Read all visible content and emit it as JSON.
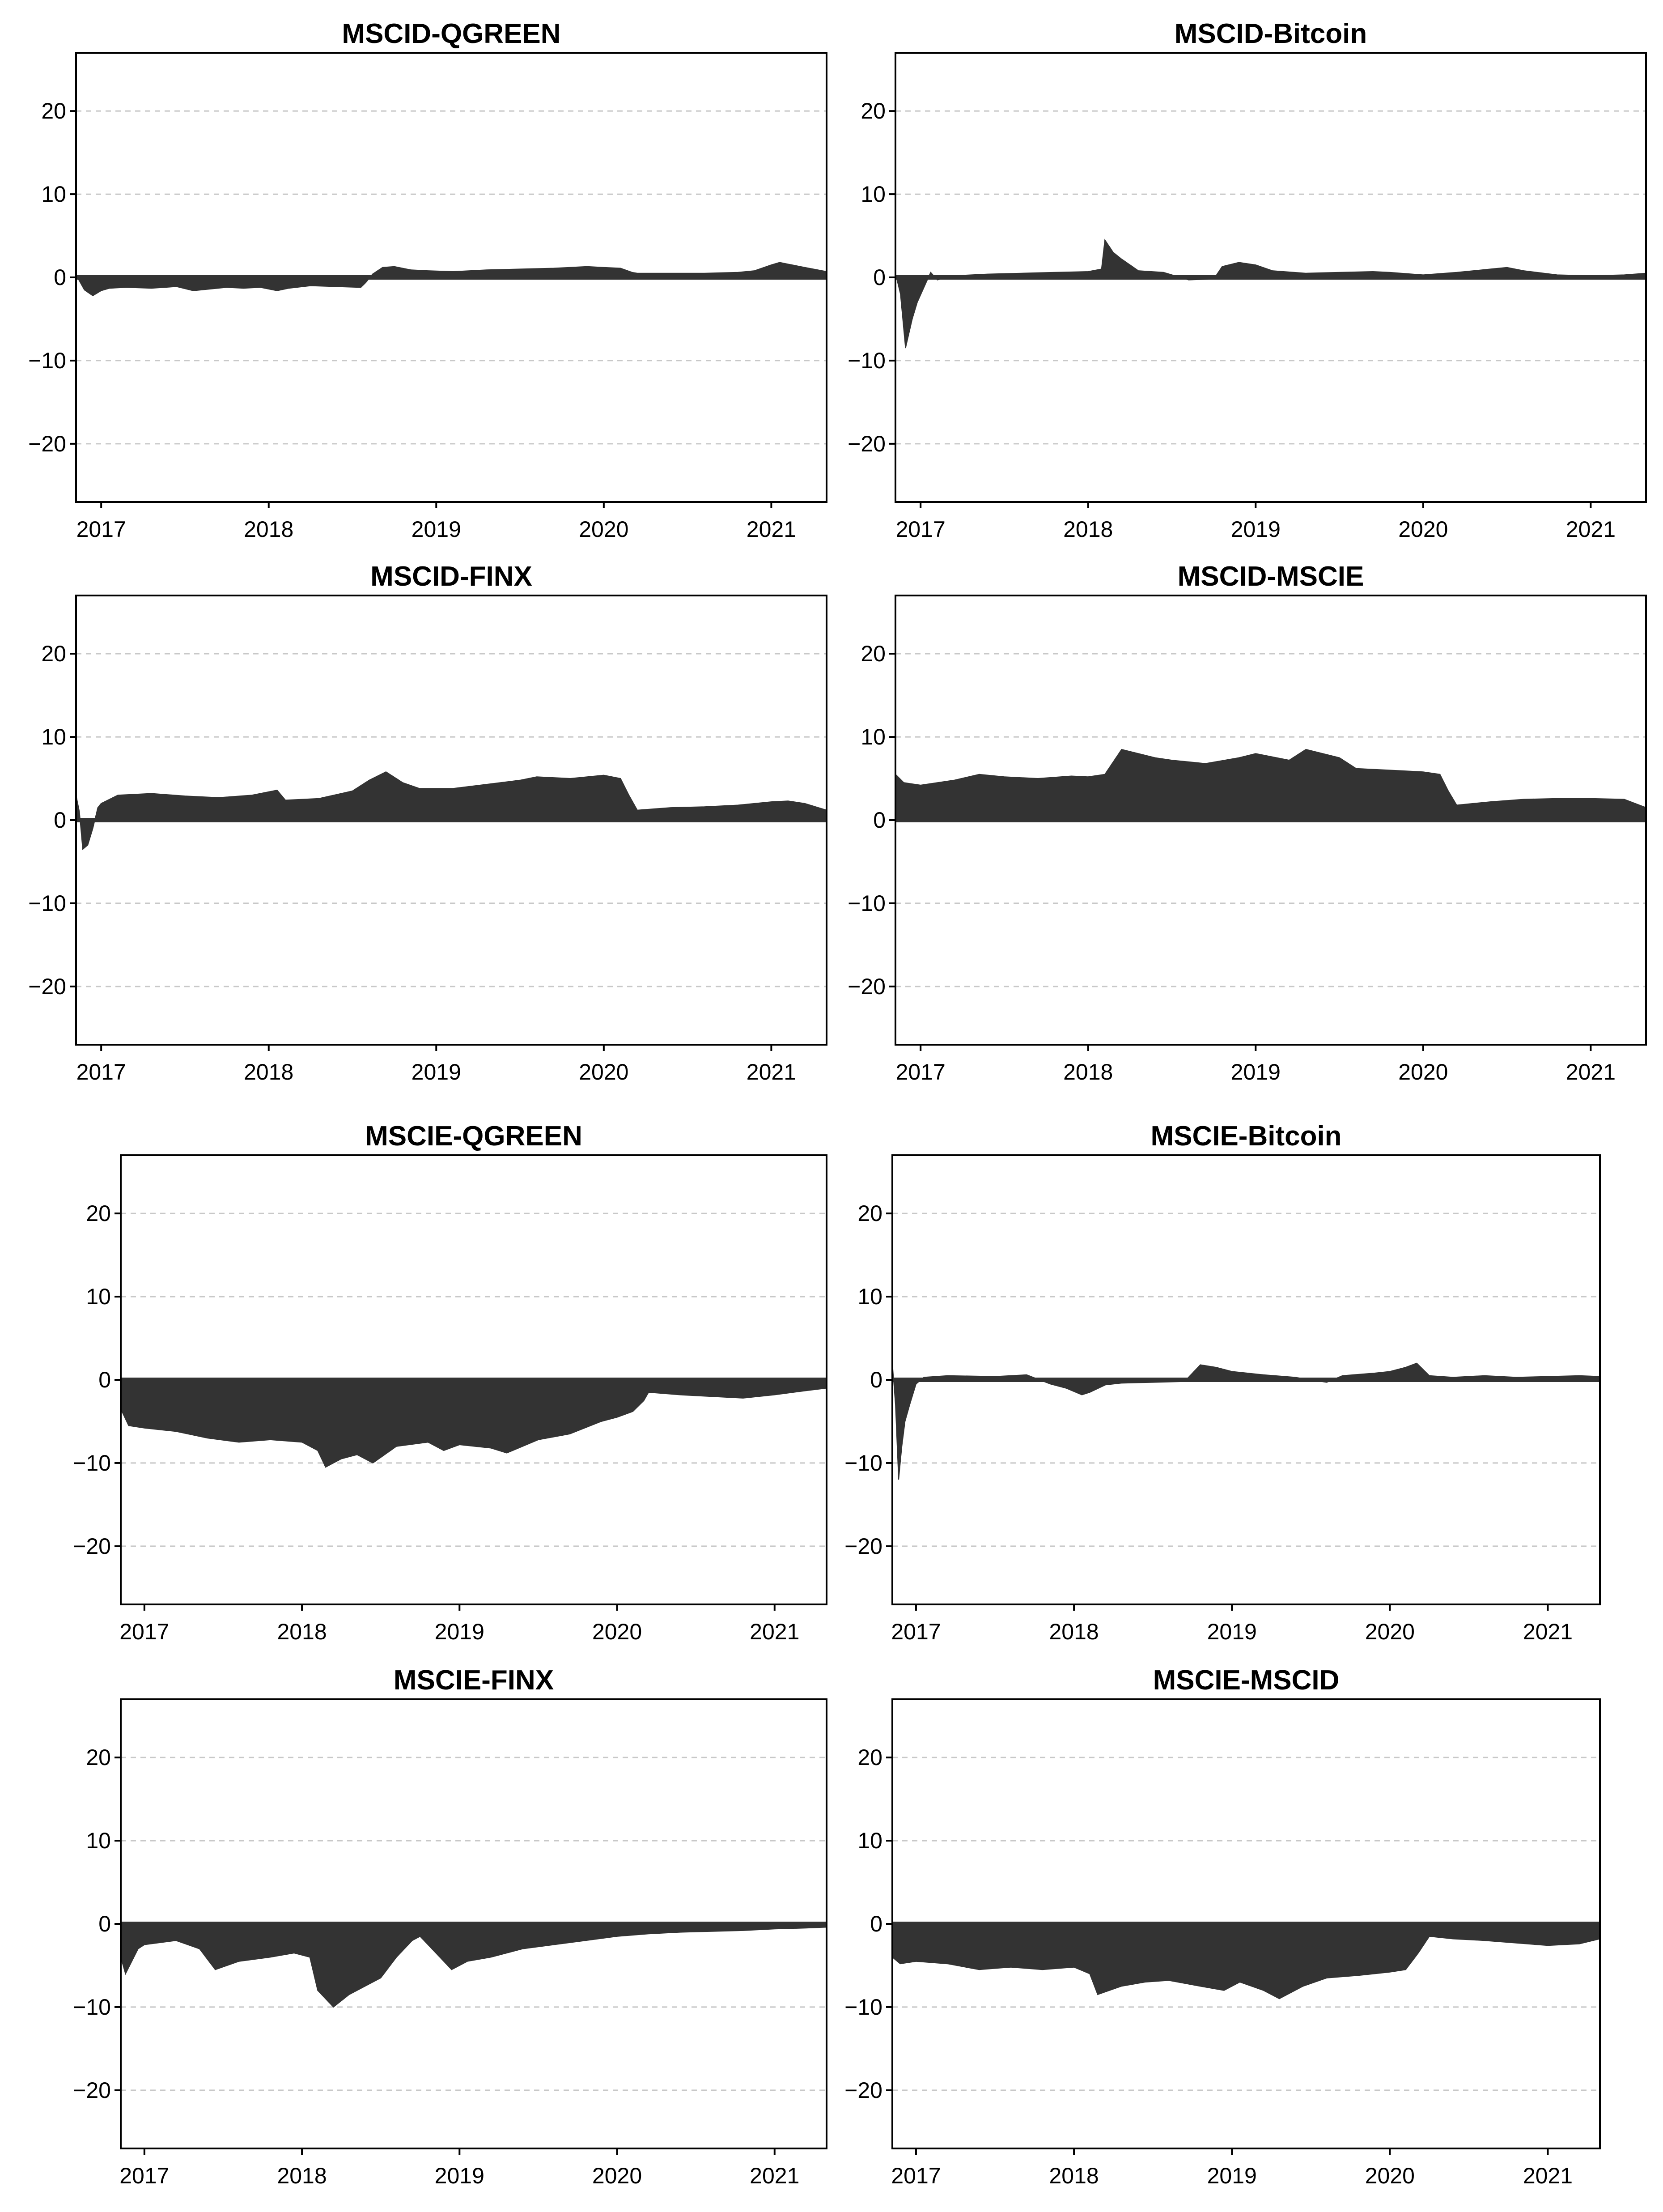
{
  "chart_data": [
    {
      "type": "area",
      "title": "MSCID-QGREEN",
      "xlabel": "",
      "ylabel": "",
      "x_ticks": [
        "2017",
        "2018",
        "2019",
        "2020",
        "2021"
      ],
      "y_ticks": [
        20,
        10,
        0,
        -10,
        -20
      ],
      "xlim": [
        2016.85,
        2021.33
      ],
      "ylim": [
        -27,
        27
      ],
      "grid": true,
      "color": "#333333",
      "series": [
        {
          "x": [
            2016.85,
            2016.9,
            2016.95,
            2017.0,
            2017.05,
            2017.15,
            2017.3,
            2017.45,
            2017.55,
            2017.65,
            2017.75,
            2017.85,
            2017.95,
            2018.05,
            2018.12,
            2018.25,
            2018.4,
            2018.55,
            2018.58,
            2018.62,
            2018.68,
            2018.75,
            2018.85,
            2018.95,
            2019.1,
            2019.3,
            2019.5,
            2019.7,
            2019.9,
            2020.0,
            2020.1,
            2020.17,
            2020.2,
            2020.4,
            2020.6,
            2020.8,
            2020.9,
            2021.0,
            2021.05,
            2021.1,
            2021.2,
            2021.33
          ],
          "values": [
            0.3,
            -1.5,
            -2.2,
            -1.6,
            -1.3,
            -1.2,
            -1.3,
            -1.1,
            -1.6,
            -1.4,
            -1.2,
            -1.3,
            -1.2,
            -1.6,
            -1.3,
            -1.0,
            -1.1,
            -1.2,
            -0.6,
            0.4,
            1.2,
            1.3,
            0.9,
            0.8,
            0.7,
            0.9,
            1.0,
            1.1,
            1.3,
            1.2,
            1.1,
            0.6,
            0.5,
            0.5,
            0.5,
            0.6,
            0.8,
            1.5,
            1.8,
            1.6,
            1.2,
            0.7
          ]
        }
      ]
    },
    {
      "type": "area",
      "title": "MSCID-Bitcoin",
      "xlabel": "",
      "ylabel": "",
      "x_ticks": [
        "2017",
        "2018",
        "2019",
        "2020",
        "2021"
      ],
      "y_ticks": [
        20,
        10,
        0,
        -10,
        -20
      ],
      "xlim": [
        2016.85,
        2021.33
      ],
      "ylim": [
        -27,
        27
      ],
      "grid": true,
      "color": "#333333",
      "series": [
        {
          "x": [
            2016.85,
            2016.88,
            2016.91,
            2016.95,
            2016.98,
            2017.02,
            2017.06,
            2017.1,
            2017.2,
            2017.4,
            2017.6,
            2017.8,
            2018.0,
            2018.08,
            2018.1,
            2018.15,
            2018.2,
            2018.3,
            2018.45,
            2018.6,
            2018.75,
            2018.8,
            2018.9,
            2019.0,
            2019.1,
            2019.3,
            2019.5,
            2019.7,
            2019.8,
            2020.0,
            2020.2,
            2020.4,
            2020.5,
            2020.6,
            2020.8,
            2021.0,
            2021.2,
            2021.33
          ],
          "values": [
            0.5,
            -2.0,
            -8.5,
            -5.0,
            -3.0,
            -1.2,
            0.6,
            -0.3,
            0.2,
            0.4,
            0.5,
            0.6,
            0.7,
            1.0,
            4.5,
            3.0,
            2.2,
            0.8,
            0.6,
            -0.3,
            -0.2,
            1.3,
            1.8,
            1.5,
            0.8,
            0.5,
            0.6,
            0.7,
            0.6,
            0.3,
            0.6,
            1.0,
            1.2,
            0.8,
            0.3,
            0.2,
            0.3,
            0.5
          ]
        }
      ]
    },
    {
      "type": "area",
      "title": "MSCID-FINX",
      "xlabel": "",
      "ylabel": "",
      "x_ticks": [
        "2017",
        "2018",
        "2019",
        "2020",
        "2021"
      ],
      "y_ticks": [
        20,
        10,
        0,
        -10,
        -20
      ],
      "xlim": [
        2016.85,
        2021.33
      ],
      "ylim": [
        -27,
        27
      ],
      "grid": true,
      "color": "#333333",
      "series": [
        {
          "x": [
            2016.85,
            2016.87,
            2016.89,
            2016.92,
            2016.95,
            2016.98,
            2017.0,
            2017.1,
            2017.3,
            2017.5,
            2017.7,
            2017.9,
            2018.05,
            2018.1,
            2018.3,
            2018.5,
            2018.6,
            2018.7,
            2018.8,
            2018.9,
            2019.1,
            2019.3,
            2019.5,
            2019.6,
            2019.8,
            2020.0,
            2020.1,
            2020.15,
            2020.2,
            2020.4,
            2020.6,
            2020.8,
            2021.0,
            2021.1,
            2021.2,
            2021.33
          ],
          "values": [
            3.0,
            1.0,
            -3.5,
            -3.0,
            -1.0,
            1.5,
            2.0,
            3.0,
            3.2,
            2.9,
            2.7,
            3.0,
            3.6,
            2.4,
            2.6,
            3.5,
            4.8,
            5.8,
            4.5,
            3.8,
            3.8,
            4.3,
            4.8,
            5.2,
            5.0,
            5.4,
            5.0,
            3.0,
            1.2,
            1.5,
            1.6,
            1.8,
            2.2,
            2.3,
            2.0,
            1.2
          ]
        }
      ]
    },
    {
      "type": "area",
      "title": "MSCID-MSCIE",
      "xlabel": "",
      "ylabel": "",
      "x_ticks": [
        "2017",
        "2018",
        "2019",
        "2020",
        "2021"
      ],
      "y_ticks": [
        20,
        10,
        0,
        -10,
        -20
      ],
      "xlim": [
        2016.85,
        2021.33
      ],
      "ylim": [
        -27,
        27
      ],
      "grid": true,
      "color": "#333333",
      "series": [
        {
          "x": [
            2016.85,
            2016.9,
            2017.0,
            2017.2,
            2017.35,
            2017.5,
            2017.7,
            2017.9,
            2018.0,
            2018.1,
            2018.2,
            2018.4,
            2018.5,
            2018.7,
            2018.9,
            2019.0,
            2019.2,
            2019.3,
            2019.5,
            2019.6,
            2019.8,
            2020.0,
            2020.1,
            2020.15,
            2020.2,
            2020.4,
            2020.6,
            2020.8,
            2021.0,
            2021.2,
            2021.33
          ],
          "values": [
            5.5,
            4.5,
            4.2,
            4.8,
            5.5,
            5.2,
            5.0,
            5.3,
            5.2,
            5.5,
            8.5,
            7.5,
            7.2,
            6.8,
            7.5,
            8.0,
            7.2,
            8.5,
            7.5,
            6.2,
            6.0,
            5.8,
            5.5,
            3.5,
            1.8,
            2.2,
            2.5,
            2.6,
            2.6,
            2.5,
            1.5
          ]
        }
      ]
    },
    {
      "type": "area",
      "title": "MSCIE-QGREEN",
      "xlabel": "",
      "ylabel": "",
      "x_ticks": [
        "2017",
        "2018",
        "2019",
        "2020",
        "2021"
      ],
      "y_ticks": [
        20,
        10,
        0,
        -10,
        -20
      ],
      "xlim": [
        2016.85,
        2021.33
      ],
      "ylim": [
        -27,
        27
      ],
      "grid": true,
      "color": "#333333",
      "series": [
        {
          "x": [
            2016.85,
            2016.9,
            2017.0,
            2017.2,
            2017.4,
            2017.6,
            2017.8,
            2018.0,
            2018.1,
            2018.15,
            2018.25,
            2018.35,
            2018.45,
            2018.6,
            2018.8,
            2018.9,
            2019.0,
            2019.2,
            2019.3,
            2019.5,
            2019.7,
            2019.9,
            2020.0,
            2020.1,
            2020.17,
            2020.2,
            2020.4,
            2020.6,
            2020.8,
            2021.0,
            2021.2,
            2021.33
          ],
          "values": [
            -3.5,
            -5.5,
            -5.8,
            -6.2,
            -7.0,
            -7.5,
            -7.2,
            -7.5,
            -8.5,
            -10.5,
            -9.5,
            -9.0,
            -10.0,
            -8.0,
            -7.5,
            -8.5,
            -7.8,
            -8.2,
            -8.8,
            -7.2,
            -6.5,
            -5.0,
            -4.5,
            -3.8,
            -2.5,
            -1.5,
            -1.8,
            -2.0,
            -2.2,
            -1.8,
            -1.3,
            -1.0
          ]
        }
      ]
    },
    {
      "type": "area",
      "title": "MSCIE-Bitcoin",
      "xlabel": "",
      "ylabel": "",
      "x_ticks": [
        "2017",
        "2018",
        "2019",
        "2020",
        "2021"
      ],
      "y_ticks": [
        20,
        10,
        0,
        -10,
        -20
      ],
      "xlim": [
        2016.85,
        2021.33
      ],
      "ylim": [
        -27,
        27
      ],
      "grid": true,
      "color": "#333333",
      "series": [
        {
          "x": [
            2016.85,
            2016.87,
            2016.89,
            2016.91,
            2016.93,
            2016.96,
            2017.0,
            2017.05,
            2017.2,
            2017.5,
            2017.7,
            2017.85,
            2017.95,
            2018.05,
            2018.1,
            2018.2,
            2018.3,
            2018.5,
            2018.7,
            2018.8,
            2018.9,
            2019.0,
            2019.2,
            2019.4,
            2019.6,
            2019.7,
            2019.9,
            2020.0,
            2020.1,
            2020.17,
            2020.25,
            2020.4,
            2020.6,
            2020.8,
            2021.0,
            2021.2,
            2021.33
          ],
          "values": [
            2.0,
            -3.0,
            -12.0,
            -8.0,
            -5.0,
            -3.0,
            -0.5,
            0.3,
            0.5,
            0.4,
            0.6,
            -0.5,
            -1.0,
            -1.8,
            -1.5,
            -0.6,
            -0.4,
            -0.3,
            -0.2,
            1.8,
            1.5,
            1.0,
            0.6,
            0.3,
            -0.3,
            0.5,
            0.8,
            1.0,
            1.5,
            2.0,
            0.5,
            0.3,
            0.5,
            0.3,
            0.4,
            0.5,
            0.4
          ]
        }
      ]
    },
    {
      "type": "area",
      "title": "MSCIE-FINX",
      "xlabel": "",
      "ylabel": "",
      "x_ticks": [
        "2017",
        "2018",
        "2019",
        "2020",
        "2021"
      ],
      "y_ticks": [
        20,
        10,
        0,
        -10,
        -20
      ],
      "xlim": [
        2016.85,
        2021.33
      ],
      "ylim": [
        -27,
        27
      ],
      "grid": true,
      "color": "#333333",
      "series": [
        {
          "x": [
            2016.85,
            2016.88,
            2016.92,
            2016.96,
            2017.0,
            2017.2,
            2017.35,
            2017.45,
            2017.6,
            2017.8,
            2017.95,
            2018.05,
            2018.1,
            2018.2,
            2018.3,
            2018.4,
            2018.5,
            2018.6,
            2018.7,
            2018.75,
            2018.85,
            2018.95,
            2019.05,
            2019.2,
            2019.4,
            2019.6,
            2019.8,
            2020.0,
            2020.2,
            2020.4,
            2020.6,
            2020.8,
            2021.0,
            2021.2,
            2021.33
          ],
          "values": [
            -4.0,
            -6.0,
            -4.5,
            -3.0,
            -2.5,
            -2.0,
            -3.0,
            -5.5,
            -4.5,
            -4.0,
            -3.5,
            -4.0,
            -8.0,
            -10.0,
            -8.5,
            -7.5,
            -6.5,
            -4.0,
            -2.0,
            -1.5,
            -3.5,
            -5.5,
            -4.5,
            -4.0,
            -3.0,
            -2.5,
            -2.0,
            -1.5,
            -1.2,
            -1.0,
            -0.9,
            -0.8,
            -0.6,
            -0.5,
            -0.4
          ]
        }
      ]
    },
    {
      "type": "area",
      "title": "MSCIE-MSCID",
      "xlabel": "",
      "ylabel": "",
      "x_ticks": [
        "2017",
        "2018",
        "2019",
        "2020",
        "2021"
      ],
      "y_ticks": [
        20,
        10,
        0,
        -10,
        -20
      ],
      "xlim": [
        2016.85,
        2021.33
      ],
      "ylim": [
        -27,
        27
      ],
      "grid": true,
      "color": "#333333",
      "series": [
        {
          "x": [
            2016.85,
            2016.9,
            2017.0,
            2017.2,
            2017.4,
            2017.6,
            2017.8,
            2018.0,
            2018.1,
            2018.15,
            2018.3,
            2018.45,
            2018.6,
            2018.8,
            2018.95,
            2019.05,
            2019.2,
            2019.3,
            2019.45,
            2019.6,
            2019.8,
            2020.0,
            2020.1,
            2020.18,
            2020.25,
            2020.4,
            2020.6,
            2020.8,
            2021.0,
            2021.2,
            2021.33
          ],
          "values": [
            -4.0,
            -4.8,
            -4.5,
            -4.8,
            -5.5,
            -5.2,
            -5.5,
            -5.2,
            -6.0,
            -8.5,
            -7.5,
            -7.0,
            -6.8,
            -7.5,
            -8.0,
            -7.0,
            -8.0,
            -9.0,
            -7.5,
            -6.5,
            -6.2,
            -5.8,
            -5.5,
            -3.5,
            -1.5,
            -1.8,
            -2.0,
            -2.3,
            -2.6,
            -2.4,
            -1.8
          ]
        }
      ]
    }
  ]
}
